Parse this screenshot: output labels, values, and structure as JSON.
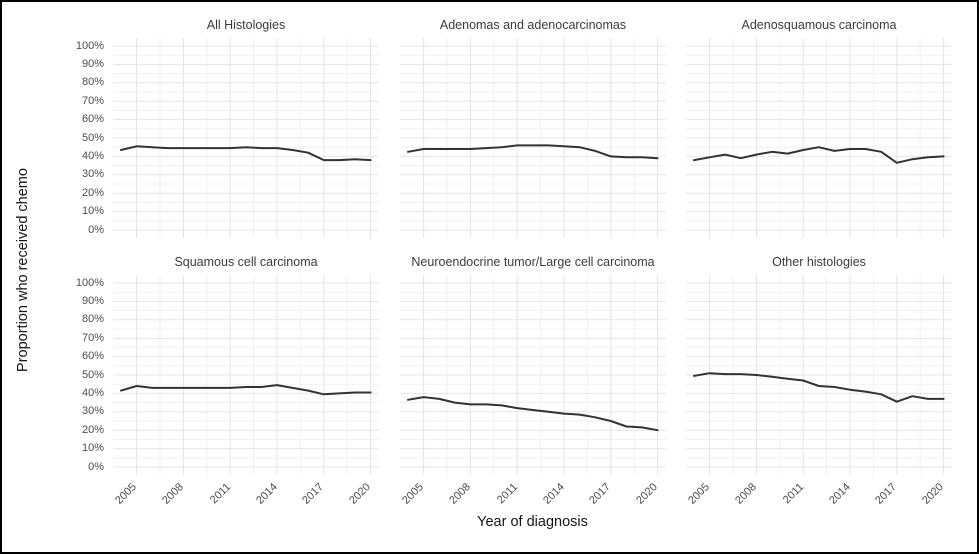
{
  "figure": {
    "background": "#ffffff",
    "border_color": "#000000",
    "line_color": "#333333",
    "grid_major_color": "#e4e4e4",
    "grid_minor_color": "#f1f1f1",
    "tick_label_color": "#4d4d4d",
    "panel_title_color": "#3c3c3c"
  },
  "chart_data": {
    "type": "line",
    "layout": "facet-grid 2 rows x 3 columns, shared axes",
    "xlabel": "Year of diagnosis",
    "ylabel": "Proportion who received chemo",
    "x": [
      2004,
      2005,
      2006,
      2007,
      2008,
      2009,
      2010,
      2011,
      2012,
      2013,
      2014,
      2015,
      2016,
      2017,
      2018,
      2019,
      2020
    ],
    "x_tick_labels": [
      "2005",
      "2008",
      "2011",
      "2014",
      "2017",
      "2020"
    ],
    "x_tick_years": [
      2005,
      2008,
      2011,
      2014,
      2017,
      2020
    ],
    "x_minor_years": [
      2006.5,
      2009.5,
      2012.5,
      2015.5,
      2018.5
    ],
    "ylim": [
      0,
      100
    ],
    "y_tick_values": [
      0,
      10,
      20,
      30,
      40,
      50,
      60,
      70,
      80,
      90,
      100
    ],
    "y_tick_labels": [
      "0%",
      "10%",
      "20%",
      "30%",
      "40%",
      "50%",
      "60%",
      "70%",
      "80%",
      "90%",
      "100%"
    ],
    "grid": "major and minor gridlines on, light grey, no panel border",
    "legend": "none",
    "panels": [
      {
        "title": "All Histologies",
        "values": [
          43.5,
          45.5,
          45,
          44.5,
          44.5,
          44.5,
          44.5,
          44.5,
          45,
          44.5,
          44.5,
          43.5,
          42,
          38,
          38,
          38.5,
          38
        ]
      },
      {
        "title": "Adenomas and adenocarcinomas",
        "values": [
          42.5,
          44,
          44,
          44,
          44,
          44.5,
          45,
          46,
          46,
          46,
          45.5,
          45,
          43,
          40,
          39.5,
          39.5,
          39
        ]
      },
      {
        "title": "Adenosquamous carcinoma",
        "values": [
          38,
          39.5,
          41,
          39,
          41,
          42.5,
          41.5,
          43.5,
          45,
          43,
          44,
          44,
          42.5,
          36.5,
          38.5,
          39.5,
          40
        ]
      },
      {
        "title": "Squamous cell carcinoma",
        "values": [
          41.5,
          44,
          43,
          43,
          43,
          43,
          43,
          43,
          43.5,
          43.5,
          44.5,
          43,
          41.5,
          39.5,
          40,
          40.5,
          40.5
        ]
      },
      {
        "title": "Neuroendocrine tumor/Large cell carcinoma",
        "values": [
          36.5,
          38,
          37,
          35,
          34,
          34,
          33.5,
          32,
          31,
          30,
          29,
          28.5,
          27,
          25,
          22,
          21.5,
          20
        ]
      },
      {
        "title": "Other histologies",
        "values": [
          49.5,
          51,
          50.5,
          50.5,
          50,
          49,
          48,
          47,
          44,
          43.5,
          42,
          41,
          39.5,
          35.5,
          38.5,
          37,
          37
        ]
      }
    ]
  }
}
